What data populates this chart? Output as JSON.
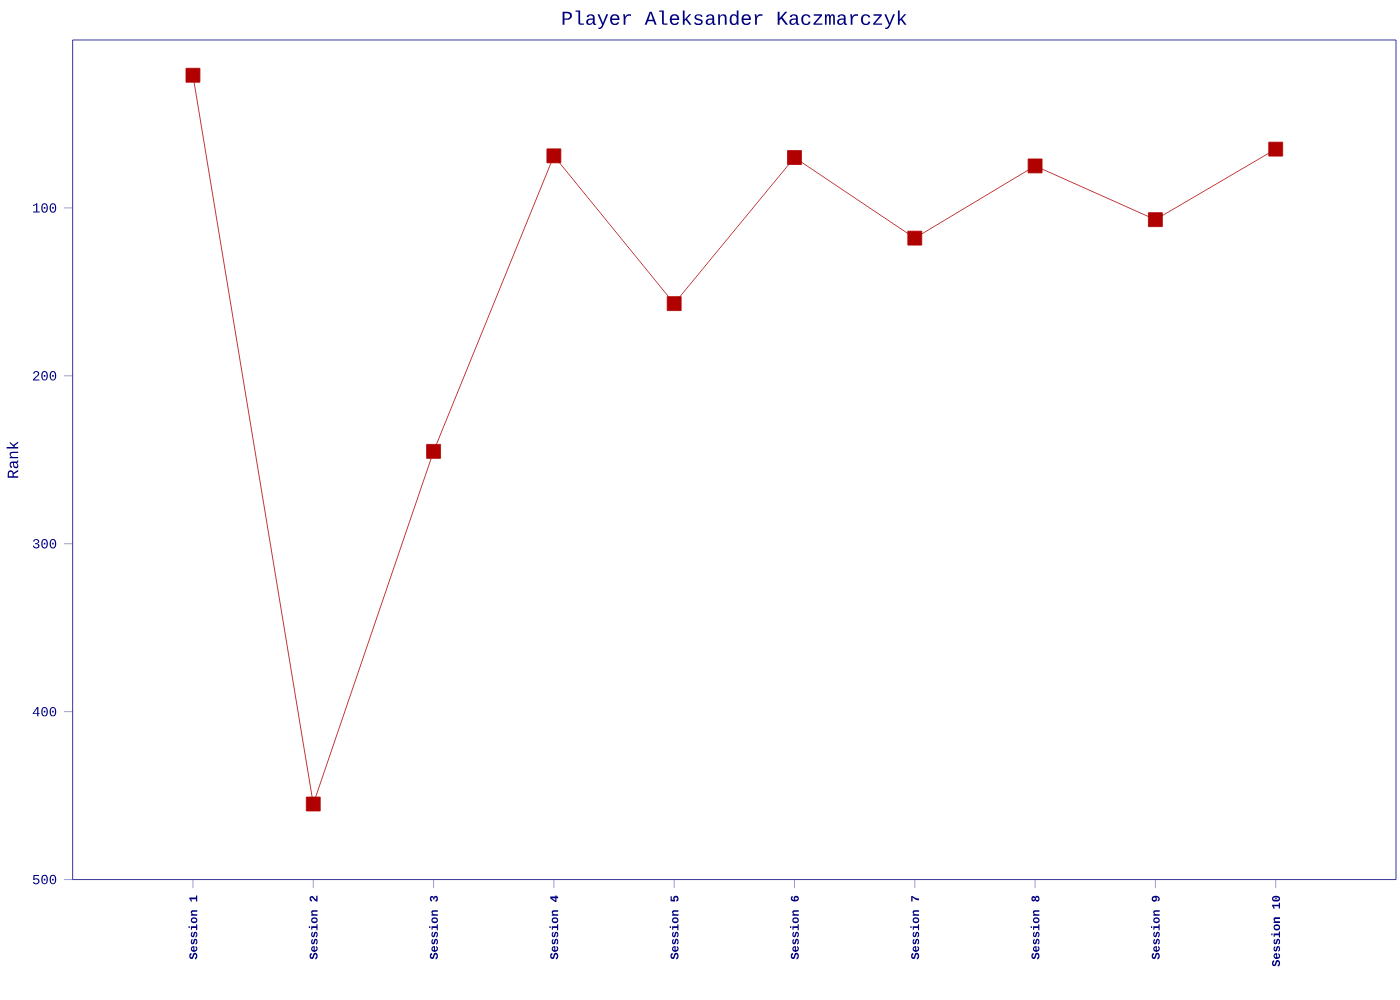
{
  "chart_data": {
    "type": "line",
    "title": "Player Aleksander Kaczmarczyk",
    "ylabel": "Rank",
    "categories": [
      "Session 1",
      "Session 2",
      "Session 3",
      "Session 4",
      "Session 5",
      "Session 6",
      "Session 7",
      "Session 8",
      "Session 9",
      "Session 10"
    ],
    "series": [
      {
        "color": "#b00000",
        "values": [
          21,
          455,
          245,
          69,
          157,
          70,
          118,
          75,
          107,
          65
        ]
      }
    ],
    "ylim": [
      500,
      0
    ],
    "yticks": [
      100,
      200,
      300,
      400,
      500
    ],
    "marker": "square",
    "line_style": "solid"
  }
}
